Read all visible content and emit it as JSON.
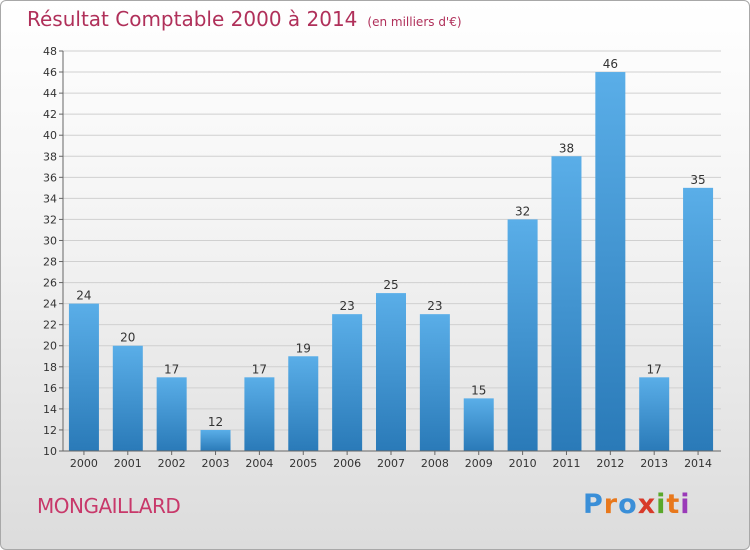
{
  "header": {
    "title": "Résultat Comptable 2000 à 2014",
    "subtitle": "(en milliers d'€)"
  },
  "commune": "MONGAILLARD",
  "logo": {
    "letters": [
      "P",
      "r",
      "o",
      "x",
      "i",
      "t",
      "i"
    ],
    "colors": [
      "#3a8fd8",
      "#e8781c",
      "#3a8fd8",
      "#d83a2a",
      "#5aa82a",
      "#e8781c",
      "#9a3ab8"
    ]
  },
  "chart_data": {
    "type": "bar",
    "categories": [
      "2000",
      "2001",
      "2002",
      "2003",
      "2004",
      "2005",
      "2006",
      "2007",
      "2008",
      "2009",
      "2010",
      "2011",
      "2012",
      "2013",
      "2014"
    ],
    "values": [
      24,
      20,
      17,
      12,
      17,
      19,
      23,
      25,
      23,
      15,
      32,
      38,
      46,
      17,
      35
    ],
    "ylim": [
      10,
      48
    ],
    "yticks": [
      10,
      12,
      14,
      16,
      18,
      20,
      22,
      24,
      26,
      28,
      30,
      32,
      34,
      36,
      38,
      40,
      42,
      44,
      46,
      48
    ],
    "grid": true,
    "bar_color_top": "#5aaee8",
    "bar_color_bottom": "#2a7ab8"
  }
}
